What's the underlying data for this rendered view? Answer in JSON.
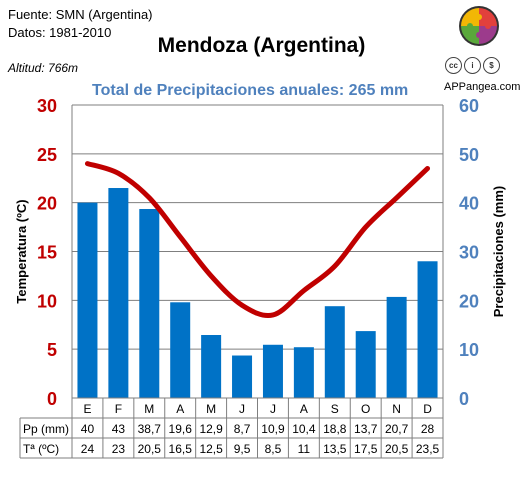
{
  "header": {
    "source": "Fuente: SMN (Argentina)",
    "period": "Datos: 1981-2010",
    "title": "Mendoza (Argentina)",
    "altitude": "Altitud: 766m",
    "subtitle": "Total de Precipitaciones anuales: 265 mm",
    "brand": "APPangea.com",
    "license_icons": [
      "cc-icon",
      "person-icon",
      "no-commercial-icon"
    ]
  },
  "chart_data": {
    "type": "bar",
    "categories": [
      "E",
      "F",
      "M",
      "A",
      "M",
      "J",
      "J",
      "A",
      "S",
      "O",
      "N",
      "D"
    ],
    "series": [
      {
        "name": "Pp (mm)",
        "type": "bar",
        "axis": "right",
        "color": "#0072c6",
        "values": [
          40,
          43,
          38.7,
          19.6,
          12.9,
          8.7,
          10.9,
          10.4,
          18.8,
          13.7,
          20.7,
          28
        ]
      },
      {
        "name": "Tª (ºC)",
        "type": "line",
        "axis": "left",
        "color": "#c00000",
        "values": [
          24,
          23,
          20.5,
          16.5,
          12.5,
          9.5,
          8.5,
          11,
          13.5,
          17.5,
          20.5,
          23.5
        ]
      }
    ],
    "table_rows": [
      {
        "label": "Pp (mm)",
        "cells": [
          "40",
          "43",
          "38,7",
          "19,6",
          "12,9",
          "8,7",
          "10,9",
          "10,4",
          "18,8",
          "13,7",
          "20,7",
          "28"
        ]
      },
      {
        "label": "Tª (ºC)",
        "cells": [
          "24",
          "23",
          "20,5",
          "16,5",
          "12,5",
          "9,5",
          "8,5",
          "11",
          "13,5",
          "17,5",
          "20,5",
          "23,5"
        ]
      }
    ],
    "y_left": {
      "label": "Temperatura (ºC)",
      "range": [
        0,
        30
      ],
      "ticks": [
        0,
        5,
        10,
        15,
        20,
        25,
        30
      ],
      "color": "#c00000"
    },
    "y_right": {
      "label": "Precipitaciones (mm)",
      "range": [
        0,
        60
      ],
      "ticks": [
        0,
        10,
        20,
        30,
        40,
        50,
        60
      ],
      "color": "#4f81bd"
    },
    "grid": true
  }
}
